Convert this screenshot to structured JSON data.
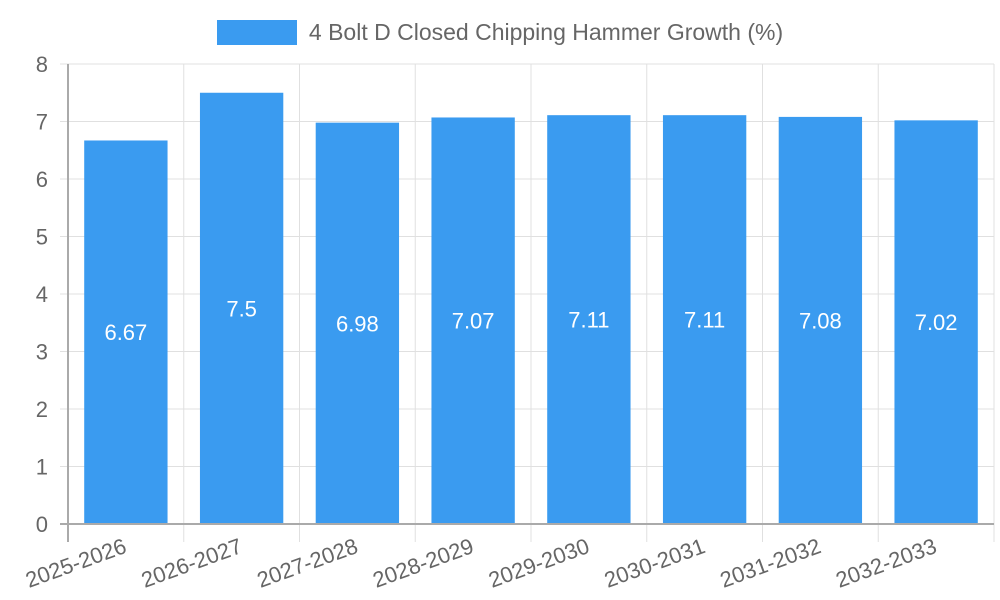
{
  "legend": {
    "label": "4 Bolt D Closed Chipping Hammer Growth (%)",
    "color": "#3a9bf0"
  },
  "chart_data": {
    "type": "bar",
    "title": "",
    "xlabel": "",
    "ylabel": "",
    "categories": [
      "2025-2026",
      "2026-2027",
      "2027-2028",
      "2028-2029",
      "2029-2030",
      "2030-2031",
      "2031-2032",
      "2032-2033"
    ],
    "series": [
      {
        "name": "4 Bolt D Closed Chipping Hammer Growth (%)",
        "values": [
          6.67,
          7.5,
          6.98,
          7.07,
          7.11,
          7.11,
          7.08,
          7.02
        ],
        "color": "#3a9bf0"
      }
    ],
    "ylim": [
      0,
      8
    ],
    "yticks": [
      0,
      1,
      2,
      3,
      4,
      5,
      6,
      7,
      8
    ],
    "grid": true,
    "legend_position": "top",
    "data_labels": true,
    "xtick_rotation": -20
  },
  "colors": {
    "bar": "#3a9bf0",
    "grid": "#e0e0e0",
    "axis": "#aaaaaa",
    "tick_text": "#666666",
    "data_label": "#ffffff"
  }
}
